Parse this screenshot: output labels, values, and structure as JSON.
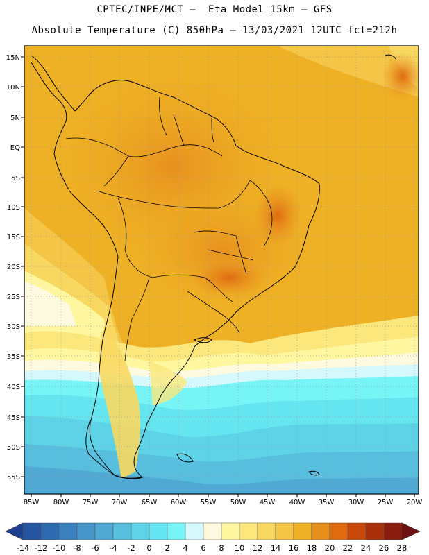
{
  "title_line1": "CPTEC/INPE/MCT –  Eta Model 15km – GFS",
  "title_line2": "Absolute Temperature (C) 850hPa – 13/03/2021 12UTC fct=212h",
  "lat_labels": [
    "15N",
    "10N",
    "5N",
    "EQ",
    "5S",
    "10S",
    "15S",
    "20S",
    "25S",
    "30S",
    "35S",
    "40S",
    "45S",
    "50S",
    "55S"
  ],
  "lon_labels": [
    "85W",
    "80W",
    "75W",
    "70W",
    "65W",
    "60W",
    "55W",
    "50W",
    "45W",
    "40W",
    "35W",
    "30W",
    "25W",
    "20W"
  ],
  "colorbar": {
    "labels": [
      "-14",
      "-12",
      "-10",
      "-8",
      "-6",
      "-4",
      "-2",
      "0",
      "2",
      "4",
      "6",
      "8",
      "10",
      "12",
      "14",
      "16",
      "18",
      "20",
      "22",
      "24",
      "26",
      "28"
    ],
    "colors": [
      "#1d3f8f",
      "#2554a0",
      "#2f6ab0",
      "#3a80be",
      "#4595c8",
      "#4fa9d3",
      "#57bedd",
      "#5ed3e7",
      "#65e5ef",
      "#76f4f6",
      "#d4f8fb",
      "#fefae0",
      "#fef7a0",
      "#fbe77c",
      "#f8d860",
      "#f4c546",
      "#eeb024",
      "#e8901e",
      "#e06a10",
      "#c8480a",
      "#a8300a",
      "#8a1c0e",
      "#6e1010"
    ]
  }
}
